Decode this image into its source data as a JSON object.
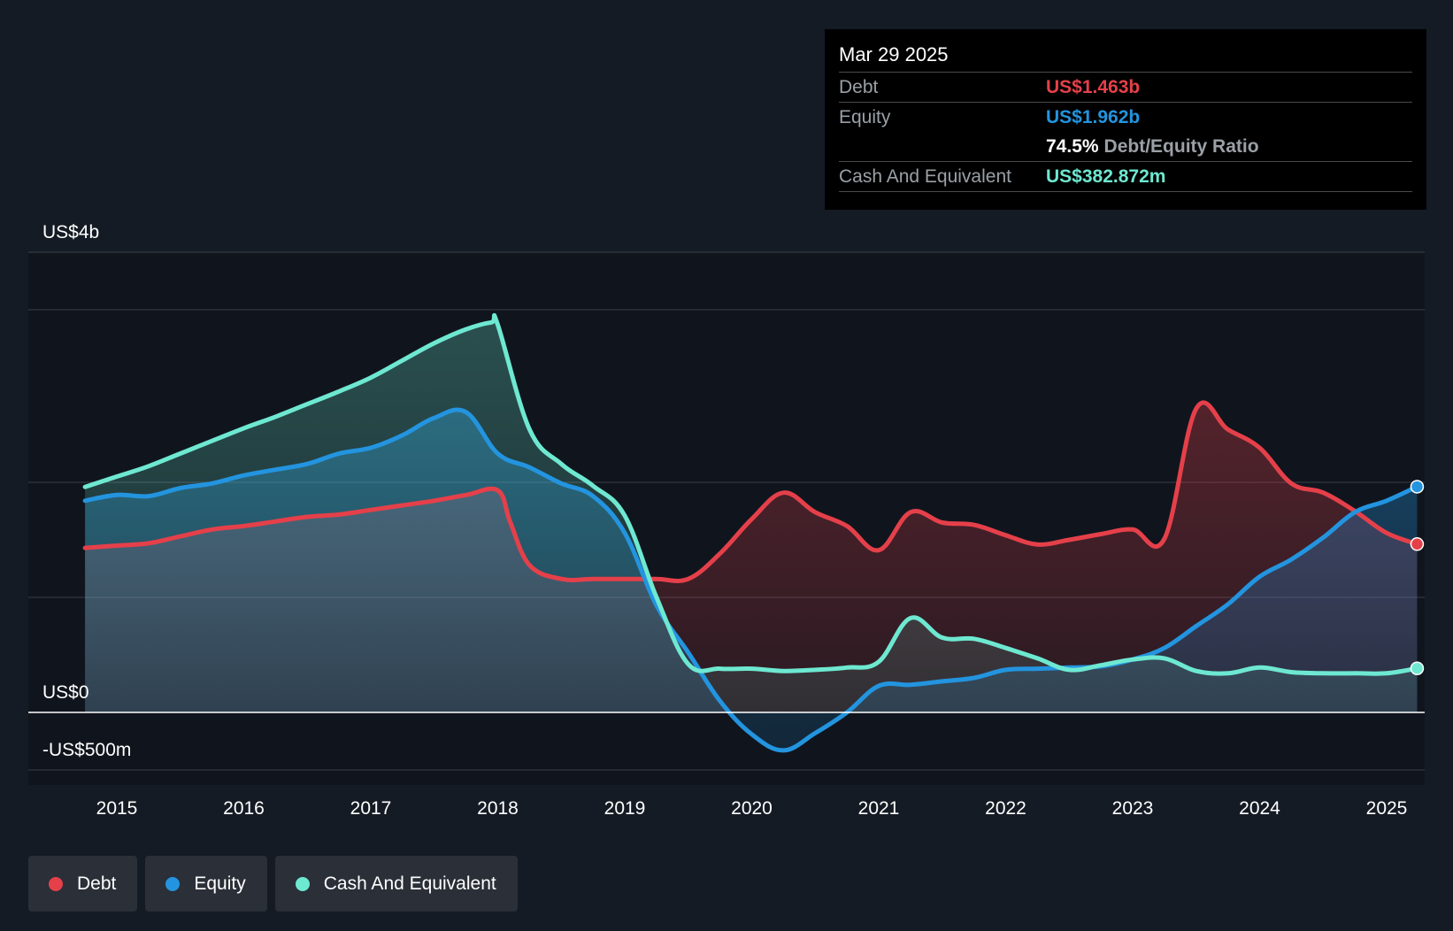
{
  "tooltip": {
    "date": "Mar 29 2025",
    "rows": [
      {
        "label": "Debt",
        "value": "US$1.463b"
      },
      {
        "label": "Equity",
        "value": "US$1.962b"
      },
      {
        "label": "",
        "ratio_value": "74.5%",
        "ratio_label": "Debt/Equity Ratio"
      },
      {
        "label": "Cash And Equivalent",
        "value": "US$382.872m"
      }
    ]
  },
  "legend": [
    {
      "label": "Debt"
    },
    {
      "label": "Equity"
    },
    {
      "label": "Cash And Equivalent"
    }
  ],
  "colors": {
    "background": "#151b24",
    "debt": "#e5404a",
    "equity": "#2394df",
    "cash": "#6ee8d1",
    "gridline": "#3a3f48",
    "zeroline": "#ffffff"
  },
  "chart_data": {
    "type": "area",
    "title": "",
    "xlabel": "",
    "ylabel": "",
    "y_tick_labels": [
      {
        "value": 4000,
        "label": "US$4b"
      },
      {
        "value": 0,
        "label": "US$0"
      },
      {
        "value": -500,
        "label": "-US$500m"
      }
    ],
    "ylim": [
      -500,
      4000
    ],
    "y_gridlines": [
      4000,
      3500,
      2000,
      1000,
      0,
      -500
    ],
    "x_tick_labels": [
      "2015",
      "2016",
      "2017",
      "2018",
      "2019",
      "2020",
      "2021",
      "2022",
      "2023",
      "2024",
      "2025"
    ],
    "xlim": [
      2014.72,
      2025.24
    ],
    "grid": true,
    "legend_position": "bottom-left",
    "series": [
      {
        "name": "Debt",
        "color": "#e5404a",
        "x": [
          2014.75,
          2015.0,
          2015.25,
          2015.5,
          2015.75,
          2016.0,
          2016.25,
          2016.5,
          2016.75,
          2017.0,
          2017.25,
          2017.5,
          2017.75,
          2018.0,
          2018.1,
          2018.25,
          2018.5,
          2018.75,
          2019.0,
          2019.25,
          2019.5,
          2019.75,
          2020.0,
          2020.25,
          2020.5,
          2020.75,
          2021.0,
          2021.25,
          2021.5,
          2021.75,
          2022.0,
          2022.25,
          2022.5,
          2022.75,
          2023.0,
          2023.25,
          2023.5,
          2023.75,
          2024.0,
          2024.25,
          2024.5,
          2024.75,
          2025.0,
          2025.24
        ],
        "values": [
          1430,
          1450,
          1470,
          1530,
          1590,
          1620,
          1660,
          1700,
          1720,
          1760,
          1800,
          1840,
          1890,
          1930,
          1650,
          1280,
          1160,
          1160,
          1160,
          1160,
          1160,
          1380,
          1680,
          1910,
          1740,
          1620,
          1410,
          1740,
          1650,
          1630,
          1540,
          1460,
          1500,
          1550,
          1590,
          1510,
          2640,
          2460,
          2300,
          1990,
          1910,
          1750,
          1560,
          1463
        ]
      },
      {
        "name": "Equity",
        "color": "#2394df",
        "x": [
          2014.75,
          2015.0,
          2015.25,
          2015.5,
          2015.75,
          2016.0,
          2016.25,
          2016.5,
          2016.75,
          2017.0,
          2017.25,
          2017.5,
          2017.75,
          2018.0,
          2018.25,
          2018.5,
          2018.75,
          2019.0,
          2019.25,
          2019.5,
          2019.75,
          2020.0,
          2020.25,
          2020.5,
          2020.75,
          2021.0,
          2021.25,
          2021.5,
          2021.75,
          2022.0,
          2022.25,
          2022.5,
          2022.75,
          2023.0,
          2023.25,
          2023.5,
          2023.75,
          2024.0,
          2024.25,
          2024.5,
          2024.75,
          2025.0,
          2025.24
        ],
        "values": [
          1840,
          1890,
          1880,
          1950,
          1990,
          2060,
          2110,
          2160,
          2250,
          2300,
          2410,
          2560,
          2610,
          2250,
          2130,
          1990,
          1880,
          1560,
          930,
          520,
          100,
          -190,
          -330,
          -180,
          0,
          230,
          240,
          270,
          300,
          370,
          380,
          390,
          400,
          460,
          560,
          750,
          940,
          1180,
          1330,
          1520,
          1740,
          1840,
          1962
        ]
      },
      {
        "name": "Cash And Equivalent",
        "color": "#6ee8d1",
        "x": [
          2014.75,
          2015.0,
          2015.25,
          2015.5,
          2015.75,
          2016.0,
          2016.25,
          2016.5,
          2016.75,
          2017.0,
          2017.25,
          2017.5,
          2017.75,
          2017.95,
          2018.0,
          2018.25,
          2018.5,
          2018.75,
          2019.0,
          2019.25,
          2019.5,
          2019.75,
          2020.0,
          2020.25,
          2020.5,
          2020.75,
          2021.0,
          2021.25,
          2021.5,
          2021.75,
          2022.0,
          2022.25,
          2022.5,
          2022.75,
          2023.0,
          2023.25,
          2023.5,
          2023.75,
          2024.0,
          2024.25,
          2024.5,
          2024.75,
          2025.0,
          2025.24
        ],
        "values": [
          1960,
          2050,
          2140,
          2250,
          2360,
          2470,
          2570,
          2680,
          2790,
          2910,
          3060,
          3210,
          3330,
          3390,
          3370,
          2460,
          2160,
          1970,
          1710,
          1000,
          420,
          380,
          380,
          360,
          370,
          390,
          440,
          820,
          650,
          640,
          560,
          470,
          370,
          410,
          460,
          470,
          360,
          340,
          390,
          350,
          340,
          340,
          340,
          383
        ]
      }
    ]
  }
}
